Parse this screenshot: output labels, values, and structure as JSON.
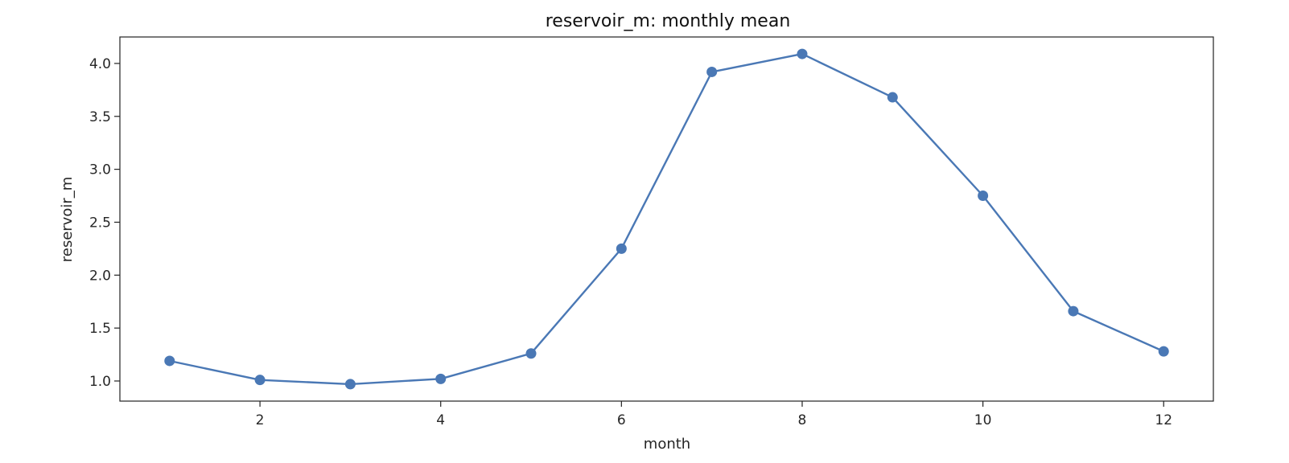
{
  "chart_data": {
    "type": "line",
    "title": "reservoir_m: monthly mean",
    "xlabel": "month",
    "ylabel": "reservoir_m",
    "x": [
      1,
      2,
      3,
      4,
      5,
      6,
      7,
      8,
      9,
      10,
      11,
      12
    ],
    "series": [
      {
        "values": [
          1.19,
          1.01,
          0.97,
          1.02,
          1.26,
          2.25,
          3.92,
          4.09,
          3.68,
          2.75,
          1.66,
          1.28
        ],
        "color": "#4a78b5",
        "marker": "circle"
      }
    ],
    "xlim": [
      0.45,
      12.55
    ],
    "ylim": [
      0.81,
      4.25
    ],
    "xticks": [
      2,
      4,
      6,
      8,
      10,
      12
    ],
    "yticks": [
      1.0,
      1.5,
      2.0,
      2.5,
      3.0,
      3.5,
      4.0
    ],
    "ytick_labels": [
      "1.0",
      "1.5",
      "2.0",
      "2.5",
      "3.0",
      "3.5",
      "4.0"
    ],
    "grid": false,
    "legend": "none"
  }
}
